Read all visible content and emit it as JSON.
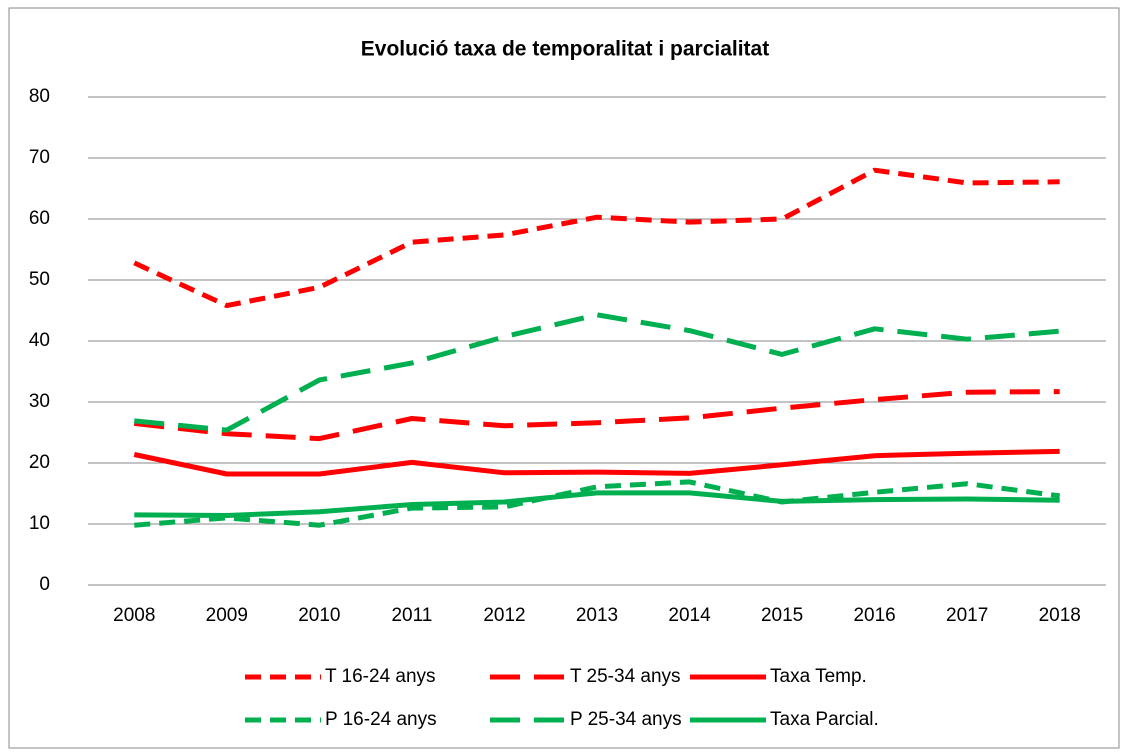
{
  "chart_data": {
    "type": "line",
    "title": "Evolució taxa de temporalitat i parcialitat",
    "categories": [
      "2008",
      "2009",
      "2010",
      "2011",
      "2012",
      "2013",
      "2014",
      "2015",
      "2016",
      "2017",
      "2018"
    ],
    "ylim": [
      0,
      80
    ],
    "yticks": [
      0,
      10,
      20,
      30,
      40,
      50,
      60,
      70,
      80
    ],
    "grid": true,
    "legend": "bottom",
    "series": [
      {
        "name": "T 16-24 anys",
        "color": "#ff0000",
        "dash": "short",
        "values": [
          52.8,
          45.8,
          48.8,
          56.2,
          57.4,
          60.3,
          59.5,
          60.0,
          68.0,
          65.9,
          66.1
        ]
      },
      {
        "name": "T 25-34 anys",
        "color": "#ff0000",
        "dash": "long",
        "values": [
          26.5,
          24.8,
          24.0,
          27.3,
          26.1,
          26.6,
          27.4,
          29.0,
          30.4,
          31.6,
          31.7
        ]
      },
      {
        "name": "Taxa Temp.",
        "color": "#ff0000",
        "dash": "solid",
        "values": [
          21.4,
          18.2,
          18.2,
          20.1,
          18.4,
          18.5,
          18.3,
          19.7,
          21.2,
          21.6,
          21.9
        ]
      },
      {
        "name": "P 16-24 anys",
        "color": "#00b050",
        "dash": "short",
        "values": [
          9.8,
          11.0,
          9.8,
          12.6,
          12.8,
          16.1,
          16.9,
          13.6,
          15.2,
          16.6,
          14.6
        ]
      },
      {
        "name": "P 25-34 anys",
        "color": "#00b050",
        "dash": "long",
        "values": [
          26.9,
          25.4,
          33.6,
          36.4,
          40.7,
          44.3,
          41.7,
          37.8,
          42.0,
          40.3,
          41.6
        ]
      },
      {
        "name": "Taxa Parcial.",
        "color": "#00b050",
        "dash": "solid",
        "values": [
          11.5,
          11.4,
          12.0,
          13.2,
          13.6,
          15.1,
          15.1,
          13.7,
          14.0,
          14.1,
          13.9
        ]
      }
    ]
  }
}
